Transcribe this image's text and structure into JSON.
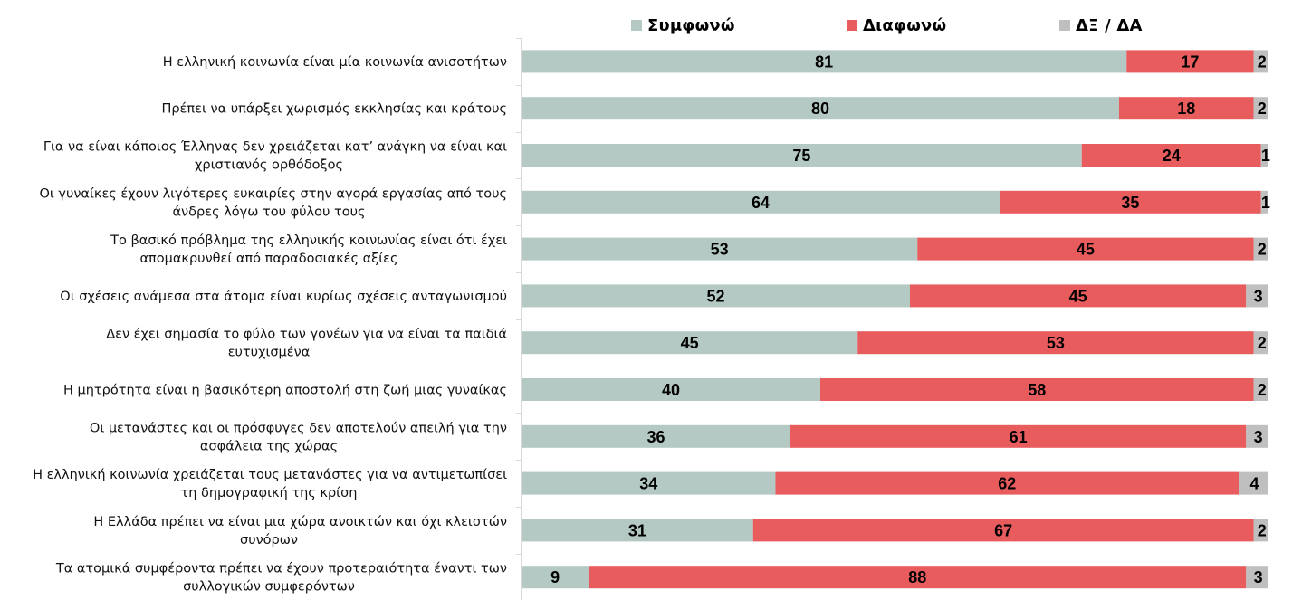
{
  "chart_data": {
    "type": "bar",
    "orientation": "horizontal",
    "stacked": true,
    "percent_stacked": true,
    "title": "",
    "xlabel": "",
    "ylabel": "",
    "xlim": [
      0,
      100
    ],
    "grid": false,
    "legend_position": "top",
    "categories": [
      [
        "Η ελληνική κοινωνία είναι μία κοινωνία ανισοτήτων"
      ],
      [
        "Πρέπει να υπάρξει χωρισμός εκκλησίας και κράτους"
      ],
      [
        "Για να είναι κάποιος Έλληνας δεν χρειάζεται κατ’ ανάγκη να είναι και",
        "χριστιανός ορθόδοξος"
      ],
      [
        "Οι γυναίκες έχουν λιγότερες ευκαιρίες στην αγορά εργασίας από τους",
        "άνδρες λόγω του φύλου τους"
      ],
      [
        "Το βασικό πρόβλημα της ελληνικής κοινωνίας είναι ότι έχει",
        "απομακρυνθεί από παραδοσιακές αξίες"
      ],
      [
        "Οι σχέσεις ανάμεσα στα άτομα είναι κυρίως σχέσεις ανταγωνισμού"
      ],
      [
        "Δεν έχει σημασία το φύλο των γονέων για να είναι τα παιδιά",
        "ευτυχισμένα"
      ],
      [
        "Η μητρότητα είναι η βασικότερη αποστολή στη ζωή μιας γυναίκας"
      ],
      [
        "Οι μετανάστες και οι πρόσφυγες δεν αποτελούν απειλή για την",
        "ασφάλεια της χώρας"
      ],
      [
        "Η ελληνική κοινωνία χρειάζεται τους μετανάστες για να αντιμετωπίσει",
        "τη δημογραφική της κρίση"
      ],
      [
        "Η Ελλάδα πρέπει να είναι μια χώρα ανοικτών και όχι κλειστών",
        "συνόρων"
      ],
      [
        "Τα ατομικά συμφέροντα πρέπει να έχουν προτεραιότητα έναντι των",
        "συλλογικών συμφερόντων"
      ]
    ],
    "series": [
      {
        "name": "Συμφωνώ",
        "color": "#B4C9C3",
        "values": [
          81,
          80,
          75,
          64,
          53,
          52,
          45,
          40,
          36,
          34,
          31,
          9
        ]
      },
      {
        "name": "Διαφωνώ",
        "color": "#E85C5E",
        "values": [
          17,
          18,
          24,
          35,
          45,
          45,
          53,
          58,
          61,
          62,
          67,
          88
        ]
      },
      {
        "name": "ΔΞ / ΔΑ",
        "color": "#BFBFBF",
        "values": [
          2,
          2,
          1,
          1,
          2,
          3,
          2,
          2,
          3,
          4,
          2,
          3
        ]
      }
    ]
  },
  "legend": {
    "items": [
      {
        "label": "Συμφωνώ",
        "color": "#B4C9C3"
      },
      {
        "label": "Διαφωνώ",
        "color": "#E85C5E"
      },
      {
        "label": "ΔΞ / ΔΑ",
        "color": "#BFBFBF"
      }
    ]
  },
  "colors": {
    "axis": "#D9D9D9",
    "label_text": "#111111",
    "value_text": "#000000"
  }
}
